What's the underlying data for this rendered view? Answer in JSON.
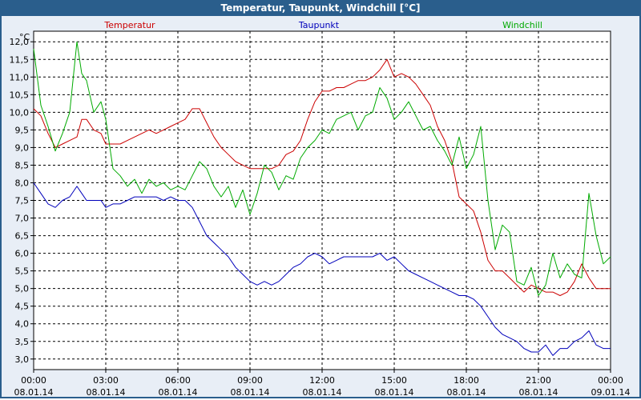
{
  "window": {
    "title": "Temperatur, Taupunkt, Windchill [°C]"
  },
  "chart_data": {
    "type": "line",
    "title": "Temperatur, Taupunkt, Windchill [°C]",
    "ylabel": "°C",
    "ylim": [
      2.7,
      12.3
    ],
    "xlim": [
      0,
      24
    ],
    "grid": true,
    "y_ticks": [
      "3,0",
      "3,5",
      "4,0",
      "4,5",
      "5,0",
      "5,5",
      "6,0",
      "6,5",
      "7,0",
      "7,5",
      "8,0",
      "8,5",
      "9,0",
      "9,5",
      "10,0",
      "10,5",
      "11,0",
      "11,5",
      "12,0"
    ],
    "x_ticks": [
      {
        "time": "00:00",
        "date": "08.01.14"
      },
      {
        "time": "03:00",
        "date": "08.01.14"
      },
      {
        "time": "06:00",
        "date": "08.01.14"
      },
      {
        "time": "09:00",
        "date": "08.01.14"
      },
      {
        "time": "12:00",
        "date": "08.01.14"
      },
      {
        "time": "15:00",
        "date": "08.01.14"
      },
      {
        "time": "18:00",
        "date": "08.01.14"
      },
      {
        "time": "21:00",
        "date": "08.01.14"
      },
      {
        "time": "00:00",
        "date": "09.01.14"
      }
    ],
    "series": [
      {
        "name": "Temperatur",
        "color": "#cc0000",
        "x": [
          0,
          0.3,
          0.6,
          0.9,
          1.2,
          1.5,
          1.8,
          2.0,
          2.2,
          2.5,
          2.8,
          3.0,
          3.3,
          3.6,
          3.9,
          4.2,
          4.5,
          4.8,
          5.1,
          5.4,
          5.7,
          6.0,
          6.3,
          6.6,
          6.9,
          7.2,
          7.5,
          7.8,
          8.1,
          8.4,
          8.7,
          9.0,
          9.3,
          9.6,
          9.9,
          10.2,
          10.5,
          10.8,
          11.1,
          11.4,
          11.7,
          12.0,
          12.3,
          12.6,
          12.9,
          13.2,
          13.5,
          13.8,
          14.1,
          14.4,
          14.7,
          15.0,
          15.3,
          15.6,
          15.9,
          16.2,
          16.5,
          16.8,
          17.1,
          17.4,
          17.7,
          18.0,
          18.3,
          18.6,
          18.9,
          19.2,
          19.5,
          19.8,
          20.1,
          20.4,
          20.7,
          21.0,
          21.3,
          21.6,
          21.9,
          22.2,
          22.5,
          22.8,
          23.1,
          23.4,
          23.7,
          24.0
        ],
        "y": [
          10.1,
          9.9,
          9.4,
          9.0,
          9.1,
          9.2,
          9.3,
          9.8,
          9.8,
          9.5,
          9.4,
          9.1,
          9.1,
          9.1,
          9.2,
          9.3,
          9.4,
          9.5,
          9.4,
          9.5,
          9.6,
          9.7,
          9.8,
          10.1,
          10.1,
          9.7,
          9.3,
          9.0,
          8.8,
          8.6,
          8.5,
          8.4,
          8.4,
          8.4,
          8.4,
          8.5,
          8.8,
          8.9,
          9.2,
          9.8,
          10.3,
          10.6,
          10.6,
          10.7,
          10.7,
          10.8,
          10.9,
          10.9,
          11.0,
          11.2,
          11.5,
          11.0,
          11.1,
          11.0,
          10.8,
          10.5,
          10.2,
          9.6,
          9.2,
          8.6,
          7.6,
          7.4,
          7.2,
          6.6,
          5.8,
          5.5,
          5.5,
          5.3,
          5.1,
          4.9,
          5.1,
          5.0,
          4.9,
          4.9,
          4.8,
          4.9,
          5.2,
          5.7,
          5.3,
          5.0,
          5.0,
          5.0
        ]
      },
      {
        "name": "Taupunkt",
        "color": "#0000bb",
        "x": [
          0,
          0.3,
          0.6,
          0.9,
          1.2,
          1.5,
          1.8,
          2.0,
          2.2,
          2.5,
          2.8,
          3.0,
          3.3,
          3.6,
          3.9,
          4.2,
          4.5,
          4.8,
          5.1,
          5.4,
          5.7,
          6.0,
          6.3,
          6.6,
          6.9,
          7.2,
          7.5,
          7.8,
          8.1,
          8.4,
          8.7,
          9.0,
          9.3,
          9.6,
          9.9,
          10.2,
          10.5,
          10.8,
          11.1,
          11.4,
          11.7,
          12.0,
          12.3,
          12.6,
          12.9,
          13.2,
          13.5,
          13.8,
          14.1,
          14.4,
          14.7,
          15.0,
          15.3,
          15.6,
          15.9,
          16.2,
          16.5,
          16.8,
          17.1,
          17.4,
          17.7,
          18.0,
          18.3,
          18.6,
          18.9,
          19.2,
          19.5,
          19.8,
          20.1,
          20.4,
          20.7,
          21.0,
          21.3,
          21.6,
          21.9,
          22.2,
          22.5,
          22.8,
          23.1,
          23.4,
          23.7,
          24.0
        ],
        "y": [
          8.0,
          7.7,
          7.4,
          7.3,
          7.5,
          7.6,
          7.9,
          7.7,
          7.5,
          7.5,
          7.5,
          7.3,
          7.4,
          7.4,
          7.5,
          7.6,
          7.6,
          7.6,
          7.6,
          7.5,
          7.6,
          7.5,
          7.5,
          7.3,
          6.9,
          6.5,
          6.3,
          6.1,
          5.9,
          5.6,
          5.4,
          5.2,
          5.1,
          5.2,
          5.1,
          5.2,
          5.4,
          5.6,
          5.7,
          5.9,
          6.0,
          5.9,
          5.7,
          5.8,
          5.9,
          5.9,
          5.9,
          5.9,
          5.9,
          6.0,
          5.8,
          5.9,
          5.7,
          5.5,
          5.4,
          5.3,
          5.2,
          5.1,
          5.0,
          4.9,
          4.8,
          4.8,
          4.7,
          4.5,
          4.2,
          3.9,
          3.7,
          3.6,
          3.5,
          3.3,
          3.2,
          3.2,
          3.4,
          3.1,
          3.3,
          3.3,
          3.5,
          3.6,
          3.8,
          3.4,
          3.3,
          3.3
        ]
      },
      {
        "name": "Windchill",
        "color": "#00aa00",
        "x": [
          0,
          0.3,
          0.6,
          0.9,
          1.2,
          1.5,
          1.8,
          2.0,
          2.2,
          2.5,
          2.8,
          3.0,
          3.3,
          3.6,
          3.9,
          4.2,
          4.5,
          4.8,
          5.1,
          5.4,
          5.7,
          6.0,
          6.3,
          6.6,
          6.9,
          7.2,
          7.5,
          7.8,
          8.1,
          8.4,
          8.7,
          9.0,
          9.3,
          9.6,
          9.9,
          10.2,
          10.5,
          10.8,
          11.1,
          11.4,
          11.7,
          12.0,
          12.3,
          12.6,
          12.9,
          13.2,
          13.5,
          13.8,
          14.1,
          14.4,
          14.7,
          15.0,
          15.3,
          15.6,
          15.9,
          16.2,
          16.5,
          16.8,
          17.1,
          17.4,
          17.7,
          18.0,
          18.3,
          18.6,
          18.9,
          19.2,
          19.5,
          19.8,
          20.1,
          20.4,
          20.7,
          21.0,
          21.3,
          21.6,
          21.9,
          22.2,
          22.5,
          22.8,
          23.1,
          23.4,
          23.7,
          24.0
        ],
        "y": [
          11.8,
          10.2,
          9.6,
          8.9,
          9.4,
          10.0,
          12.0,
          11.1,
          10.9,
          10.0,
          10.3,
          9.8,
          8.4,
          8.2,
          7.9,
          8.1,
          7.7,
          8.1,
          7.9,
          8.0,
          7.8,
          7.9,
          7.8,
          8.2,
          8.6,
          8.4,
          7.9,
          7.6,
          7.9,
          7.3,
          7.8,
          7.1,
          7.7,
          8.5,
          8.3,
          7.8,
          8.2,
          8.1,
          8.7,
          9.0,
          9.2,
          9.5,
          9.4,
          9.8,
          9.9,
          10.0,
          9.5,
          9.9,
          10.0,
          10.7,
          10.4,
          9.8,
          10.0,
          10.3,
          9.9,
          9.5,
          9.6,
          9.2,
          8.9,
          8.5,
          9.3,
          8.4,
          8.8,
          9.6,
          7.5,
          6.1,
          6.8,
          6.6,
          5.2,
          5.1,
          5.6,
          4.8,
          5.1,
          6.0,
          5.3,
          5.7,
          5.4,
          5.3,
          7.7,
          6.5,
          5.7,
          5.9
        ]
      }
    ]
  }
}
